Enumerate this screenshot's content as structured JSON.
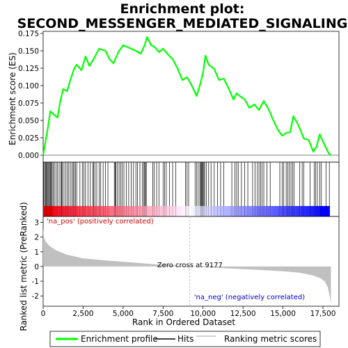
{
  "chart_data": {
    "type": "line",
    "title_line1": "Enrichment plot:",
    "title_line2": "SECOND_MESSENGER_MEDIATED_SIGNALING",
    "xlabel": "Rank in Ordered Dataset",
    "ylabel_top": "Enrichment score (ES)",
    "ylabel_bottom": "Ranked list metric (PreRanked)",
    "x_range": [
      0,
      18500
    ],
    "x_ticks": [
      0,
      2500,
      5000,
      7500,
      10000,
      12500,
      15000,
      17500
    ],
    "x_tick_labels": [
      "0",
      "2,500",
      "5,000",
      "7,500",
      "10,000",
      "12,500",
      "15,000",
      "17,500"
    ],
    "es_range": [
      -0.01,
      0.178
    ],
    "es_ticks": [
      0.0,
      0.025,
      0.05,
      0.075,
      0.1,
      0.125,
      0.15,
      0.175
    ],
    "es_tick_labels": [
      "0.000",
      "0.025",
      "0.050",
      "0.075",
      "0.100",
      "0.125",
      "0.150",
      "0.175"
    ],
    "metric_range": [
      -2.7,
      3.4
    ],
    "metric_ticks": [
      3,
      2,
      1,
      0,
      -1,
      -2
    ],
    "metric_tick_labels": [
      "3",
      "2",
      "1",
      "0",
      "-1",
      "-2"
    ],
    "es_curve": [
      [
        0,
        0.0
      ],
      [
        150,
        0.02
      ],
      [
        300,
        0.04
      ],
      [
        450,
        0.063
      ],
      [
        700,
        0.058
      ],
      [
        900,
        0.054
      ],
      [
        1050,
        0.075
      ],
      [
        1250,
        0.095
      ],
      [
        1500,
        0.092
      ],
      [
        1700,
        0.108
      ],
      [
        1950,
        0.125
      ],
      [
        2100,
        0.13
      ],
      [
        2400,
        0.122
      ],
      [
        2650,
        0.142
      ],
      [
        2900,
        0.128
      ],
      [
        3200,
        0.14
      ],
      [
        3500,
        0.153
      ],
      [
        3900,
        0.15
      ],
      [
        4150,
        0.138
      ],
      [
        4400,
        0.132
      ],
      [
        4700,
        0.148
      ],
      [
        5000,
        0.158
      ],
      [
        5400,
        0.154
      ],
      [
        5800,
        0.15
      ],
      [
        6100,
        0.146
      ],
      [
        6350,
        0.158
      ],
      [
        6500,
        0.17
      ],
      [
        6750,
        0.158
      ],
      [
        6950,
        0.156
      ],
      [
        7250,
        0.148
      ],
      [
        7500,
        0.153
      ],
      [
        7800,
        0.145
      ],
      [
        8100,
        0.138
      ],
      [
        8400,
        0.125
      ],
      [
        8700,
        0.108
      ],
      [
        9000,
        0.112
      ],
      [
        9300,
        0.1
      ],
      [
        9600,
        0.085
      ],
      [
        9800,
        0.1
      ],
      [
        10000,
        0.118
      ],
      [
        10150,
        0.143
      ],
      [
        10350,
        0.13
      ],
      [
        10700,
        0.124
      ],
      [
        11000,
        0.108
      ],
      [
        11300,
        0.11
      ],
      [
        11600,
        0.096
      ],
      [
        11900,
        0.08
      ],
      [
        12100,
        0.089
      ],
      [
        12300,
        0.085
      ],
      [
        12600,
        0.08
      ],
      [
        12900,
        0.068
      ],
      [
        13200,
        0.073
      ],
      [
        13500,
        0.065
      ],
      [
        13800,
        0.078
      ],
      [
        14100,
        0.066
      ],
      [
        14400,
        0.05
      ],
      [
        14700,
        0.036
      ],
      [
        14950,
        0.028
      ],
      [
        15200,
        0.032
      ],
      [
        15450,
        0.033
      ],
      [
        15650,
        0.056
      ],
      [
        15950,
        0.044
      ],
      [
        16300,
        0.024
      ],
      [
        16600,
        0.022
      ],
      [
        16900,
        0.005
      ],
      [
        17100,
        0.012
      ],
      [
        17300,
        0.03
      ],
      [
        17600,
        0.015
      ],
      [
        17850,
        0.003
      ],
      [
        18000,
        0.0
      ]
    ],
    "hits": [
      40,
      90,
      150,
      200,
      250,
      300,
      350,
      400,
      450,
      500,
      560,
      620,
      700,
      800,
      900,
      1000,
      1100,
      1150,
      1200,
      1300,
      1400,
      1500,
      1600,
      1700,
      1800,
      1880,
      1950,
      2020,
      2100,
      2300,
      2450,
      2550,
      2650,
      2800,
      2950,
      3100,
      3150,
      3250,
      3350,
      3500,
      3600,
      3750,
      3900,
      4050,
      4450,
      4500,
      4550,
      4650,
      4750,
      4850,
      4950,
      5050,
      5200,
      5350,
      5500,
      5650,
      5800,
      5900,
      6050,
      6200,
      6300,
      6350,
      6400,
      6450,
      6850,
      6950,
      7100,
      7250,
      7500,
      7600,
      7700,
      7900,
      8100,
      8300,
      8900,
      9000,
      9100,
      9500,
      9600,
      9700,
      9800,
      9850,
      9900,
      9950,
      10000,
      10050,
      10100,
      10200,
      10350,
      10500,
      10700,
      10900,
      11100,
      11300,
      11800,
      12000,
      12100,
      12200,
      12400,
      12600,
      12800,
      13100,
      13250,
      13400,
      13500,
      13600,
      13700,
      13800,
      14000,
      14200,
      14800,
      14950,
      15050,
      15200,
      15300,
      15400,
      15500,
      15600,
      15700,
      16050,
      16200,
      16300,
      16700,
      16950,
      17050,
      17150,
      17300,
      17400,
      17700,
      17900
    ],
    "metric_curve": [
      [
        0,
        2.6
      ],
      [
        50,
        2.0
      ],
      [
        150,
        1.7
      ],
      [
        400,
        1.4
      ],
      [
        800,
        1.1
      ],
      [
        1500,
        0.8
      ],
      [
        2500,
        0.56
      ],
      [
        4000,
        0.4
      ],
      [
        5500,
        0.28
      ],
      [
        7000,
        0.15
      ],
      [
        8500,
        0.05
      ],
      [
        9177,
        0.0
      ],
      [
        10500,
        -0.07
      ],
      [
        12000,
        -0.15
      ],
      [
        13500,
        -0.23
      ],
      [
        15000,
        -0.32
      ],
      [
        16000,
        -0.42
      ],
      [
        16800,
        -0.58
      ],
      [
        17300,
        -0.78
      ],
      [
        17600,
        -1.0
      ],
      [
        17800,
        -1.4
      ],
      [
        17920,
        -2.0
      ],
      [
        18000,
        -2.55
      ]
    ],
    "zero_cross_rank": 9177,
    "zero_cross_label": "Zero cross at 9177",
    "pos_label": "'na_pos' (positively correlated)",
    "neg_label": "'na_neg' (negatively correlated)",
    "legend": [
      {
        "label": "Enrichment profile",
        "color": "#00ff00"
      },
      {
        "label": "Hits",
        "color": "#000000"
      },
      {
        "label": "Ranking metric scores",
        "color": "#c0c0c0"
      }
    ],
    "colors": {
      "es_line": "#00ff00",
      "hits": "#000000",
      "metric_fill": "#c0c0c0",
      "pos_text": "#cc0000",
      "neg_text": "#0000cc",
      "zero_line": "#b0b0b0"
    }
  }
}
